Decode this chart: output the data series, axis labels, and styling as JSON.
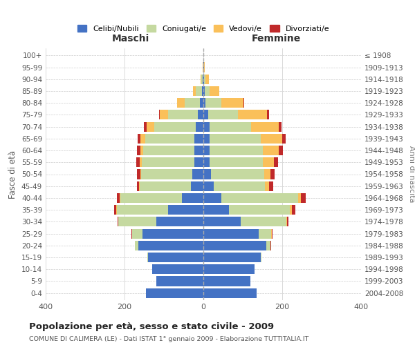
{
  "age_groups": [
    "0-4",
    "5-9",
    "10-14",
    "15-19",
    "20-24",
    "25-29",
    "30-34",
    "35-39",
    "40-44",
    "45-49",
    "50-54",
    "55-59",
    "60-64",
    "65-69",
    "70-74",
    "75-79",
    "80-84",
    "85-89",
    "90-94",
    "95-99",
    "100+"
  ],
  "birth_years": [
    "2004-2008",
    "1999-2003",
    "1994-1998",
    "1989-1993",
    "1984-1988",
    "1979-1983",
    "1974-1978",
    "1969-1973",
    "1964-1968",
    "1959-1963",
    "1954-1958",
    "1949-1953",
    "1944-1948",
    "1939-1943",
    "1934-1938",
    "1929-1933",
    "1924-1928",
    "1919-1923",
    "1914-1918",
    "1909-1913",
    "≤ 1908"
  ],
  "male": {
    "celibi": [
      145,
      120,
      130,
      140,
      165,
      155,
      120,
      90,
      55,
      32,
      28,
      22,
      22,
      22,
      20,
      14,
      8,
      4,
      2,
      0,
      0
    ],
    "coniugati": [
      0,
      0,
      0,
      2,
      8,
      25,
      95,
      130,
      155,
      130,
      130,
      135,
      130,
      125,
      105,
      75,
      40,
      15,
      3,
      0,
      0
    ],
    "vedovi": [
      0,
      0,
      0,
      0,
      0,
      1,
      1,
      1,
      2,
      2,
      2,
      5,
      8,
      12,
      18,
      22,
      18,
      8,
      2,
      1,
      0
    ],
    "divorziati": [
      0,
      0,
      0,
      0,
      1,
      2,
      2,
      5,
      8,
      5,
      8,
      8,
      8,
      8,
      8,
      2,
      0,
      0,
      0,
      0,
      0
    ]
  },
  "female": {
    "nubili": [
      135,
      120,
      130,
      145,
      160,
      140,
      95,
      65,
      45,
      26,
      20,
      16,
      16,
      15,
      16,
      12,
      6,
      4,
      2,
      1,
      0
    ],
    "coniugate": [
      0,
      0,
      0,
      3,
      10,
      32,
      115,
      155,
      195,
      130,
      135,
      135,
      135,
      130,
      105,
      75,
      40,
      12,
      4,
      0,
      0
    ],
    "vedove": [
      0,
      0,
      0,
      0,
      1,
      1,
      2,
      5,
      8,
      10,
      15,
      28,
      40,
      55,
      70,
      75,
      55,
      25,
      8,
      2,
      0
    ],
    "divorziate": [
      0,
      0,
      0,
      0,
      1,
      2,
      4,
      8,
      12,
      12,
      10,
      10,
      10,
      8,
      8,
      5,
      2,
      0,
      0,
      0,
      0
    ]
  },
  "colors": {
    "celibi": "#4472c4",
    "coniugati": "#c5d9a0",
    "vedovi": "#fac05a",
    "divorziati": "#c0292a"
  },
  "title": "Popolazione per età, sesso e stato civile - 2009",
  "subtitle": "COMUNE DI CALIMERA (LE) - Dati ISTAT 1° gennaio 2009 - Elaborazione TUTTITALIA.IT",
  "xlabel_left": "Maschi",
  "xlabel_right": "Femmine",
  "ylabel_left": "Fasce di età",
  "ylabel_right": "Anni di nascita",
  "xlim": 400,
  "legend_labels": [
    "Celibi/Nubili",
    "Coniugati/e",
    "Vedovi/e",
    "Divorziati/e"
  ],
  "bg_color": "#ffffff",
  "grid_color": "#cccccc"
}
